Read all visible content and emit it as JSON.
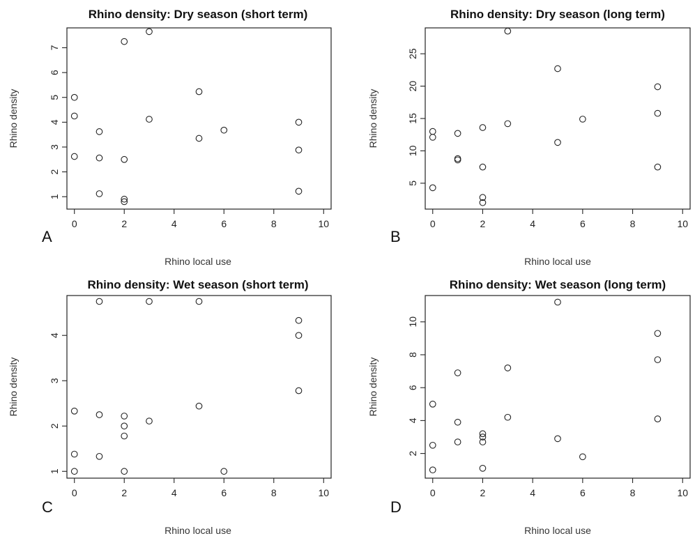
{
  "chart_data": [
    {
      "type": "scatter",
      "panel_letter": "A",
      "title": "Rhino density: Dry season (short term)",
      "xlabel": "Rhino local use",
      "ylabel": "Rhino density",
      "xlim": [
        -0.3,
        10.3
      ],
      "ylim": [
        0.5,
        7.8
      ],
      "xticks": [
        0,
        2,
        4,
        6,
        8,
        10
      ],
      "yticks": [
        1,
        2,
        3,
        4,
        5,
        6,
        7
      ],
      "points": [
        [
          0,
          5.0
        ],
        [
          0,
          4.25
        ],
        [
          0,
          2.62
        ],
        [
          1,
          3.62
        ],
        [
          1,
          2.56
        ],
        [
          1,
          1.12
        ],
        [
          2,
          7.25
        ],
        [
          2,
          2.5
        ],
        [
          2,
          0.9
        ],
        [
          2,
          0.8
        ],
        [
          3,
          7.65
        ],
        [
          3,
          4.12
        ],
        [
          5,
          5.23
        ],
        [
          5,
          3.35
        ],
        [
          6,
          3.68
        ],
        [
          9,
          4.0
        ],
        [
          9,
          2.88
        ],
        [
          9,
          1.22
        ]
      ]
    },
    {
      "type": "scatter",
      "panel_letter": "B",
      "title": "Rhino density: Dry season (long term)",
      "xlabel": "Rhino local use",
      "ylabel": "Rhino density",
      "xlim": [
        -0.3,
        10.3
      ],
      "ylim": [
        1.0,
        29.0
      ],
      "xticks": [
        0,
        2,
        4,
        6,
        8,
        10
      ],
      "yticks": [
        5,
        10,
        15,
        20,
        25
      ],
      "points": [
        [
          0,
          13.0
        ],
        [
          0,
          12.1
        ],
        [
          0,
          4.3
        ],
        [
          1,
          12.7
        ],
        [
          1,
          8.8
        ],
        [
          1,
          8.6
        ],
        [
          2,
          13.6
        ],
        [
          2,
          7.5
        ],
        [
          2,
          2.8
        ],
        [
          2,
          2.0
        ],
        [
          3,
          28.5
        ],
        [
          3,
          14.2
        ],
        [
          5,
          22.7
        ],
        [
          5,
          11.3
        ],
        [
          6,
          14.9
        ],
        [
          9,
          19.9
        ],
        [
          9,
          15.8
        ],
        [
          9,
          7.5
        ]
      ]
    },
    {
      "type": "scatter",
      "panel_letter": "C",
      "title": "Rhino density: Wet season (short term)",
      "xlabel": "Rhino local use",
      "ylabel": "Rhino density",
      "xlim": [
        -0.3,
        10.3
      ],
      "ylim": [
        0.85,
        4.88
      ],
      "xticks": [
        0,
        2,
        4,
        6,
        8,
        10
      ],
      "yticks": [
        1,
        2,
        3,
        4
      ],
      "points": [
        [
          0,
          2.33
        ],
        [
          0,
          1.38
        ],
        [
          0,
          1.0
        ],
        [
          1,
          4.75
        ],
        [
          1,
          2.25
        ],
        [
          1,
          1.33
        ],
        [
          2,
          2.22
        ],
        [
          2,
          2.0
        ],
        [
          2,
          1.78
        ],
        [
          2,
          1.0
        ],
        [
          3,
          4.75
        ],
        [
          3,
          2.11
        ],
        [
          5,
          4.75
        ],
        [
          5,
          2.44
        ],
        [
          6,
          1.0
        ],
        [
          9,
          4.33
        ],
        [
          9,
          4.0
        ],
        [
          9,
          2.78
        ]
      ]
    },
    {
      "type": "scatter",
      "panel_letter": "D",
      "title": "Rhino density: Wet season (long term)",
      "xlabel": "Rhino local use",
      "ylabel": "Rhino density",
      "xlim": [
        -0.3,
        10.3
      ],
      "ylim": [
        0.5,
        11.6
      ],
      "xticks": [
        0,
        2,
        4,
        6,
        8,
        10
      ],
      "yticks": [
        2,
        4,
        6,
        8,
        10
      ],
      "points": [
        [
          0,
          5.0
        ],
        [
          0,
          2.5
        ],
        [
          0,
          1.0
        ],
        [
          1,
          6.9
        ],
        [
          1,
          3.9
        ],
        [
          1,
          2.7
        ],
        [
          2,
          3.2
        ],
        [
          2,
          3.0
        ],
        [
          2,
          2.7
        ],
        [
          2,
          1.1
        ],
        [
          3,
          7.2
        ],
        [
          3,
          4.2
        ],
        [
          5,
          11.2
        ],
        [
          5,
          2.9
        ],
        [
          6,
          1.8
        ],
        [
          9,
          9.3
        ],
        [
          9,
          7.7
        ],
        [
          9,
          4.1
        ]
      ]
    }
  ]
}
